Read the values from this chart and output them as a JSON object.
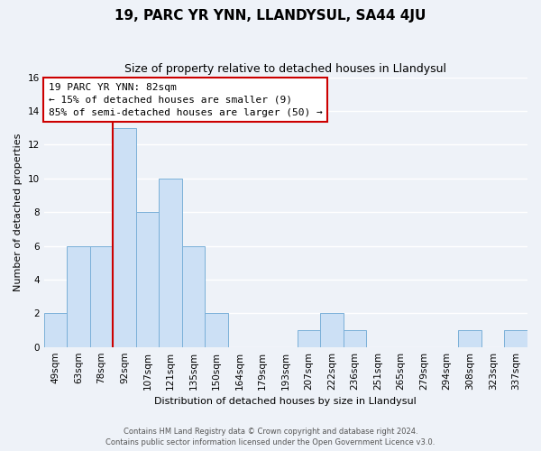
{
  "title": "19, PARC YR YNN, LLANDYSUL, SA44 4JU",
  "subtitle": "Size of property relative to detached houses in Llandysul",
  "xlabel": "Distribution of detached houses by size in Llandysul",
  "ylabel": "Number of detached properties",
  "bar_labels": [
    "49sqm",
    "63sqm",
    "78sqm",
    "92sqm",
    "107sqm",
    "121sqm",
    "135sqm",
    "150sqm",
    "164sqm",
    "179sqm",
    "193sqm",
    "207sqm",
    "222sqm",
    "236sqm",
    "251sqm",
    "265sqm",
    "279sqm",
    "294sqm",
    "308sqm",
    "323sqm",
    "337sqm"
  ],
  "bar_values": [
    2,
    6,
    6,
    13,
    8,
    10,
    6,
    2,
    0,
    0,
    0,
    1,
    2,
    1,
    0,
    0,
    0,
    0,
    1,
    0,
    1
  ],
  "bar_color": "#cce0f5",
  "bar_edge_color": "#7ab0d8",
  "vline_x_index": 2,
  "vline_color": "#cc0000",
  "annotation_title": "19 PARC YR YNN: 82sqm",
  "annotation_line1": "← 15% of detached houses are smaller (9)",
  "annotation_line2": "85% of semi-detached houses are larger (50) →",
  "annotation_box_color": "#ffffff",
  "annotation_box_edge_color": "#cc0000",
  "ylim": [
    0,
    16
  ],
  "yticks": [
    0,
    2,
    4,
    6,
    8,
    10,
    12,
    14,
    16
  ],
  "footer_line1": "Contains HM Land Registry data © Crown copyright and database right 2024.",
  "footer_line2": "Contains public sector information licensed under the Open Government Licence v3.0.",
  "bg_color": "#eef2f8",
  "plot_bg_color": "#eef2f8",
  "grid_color": "#ffffff",
  "title_fontsize": 11,
  "subtitle_fontsize": 9,
  "axis_label_fontsize": 8,
  "tick_fontsize": 7.5
}
